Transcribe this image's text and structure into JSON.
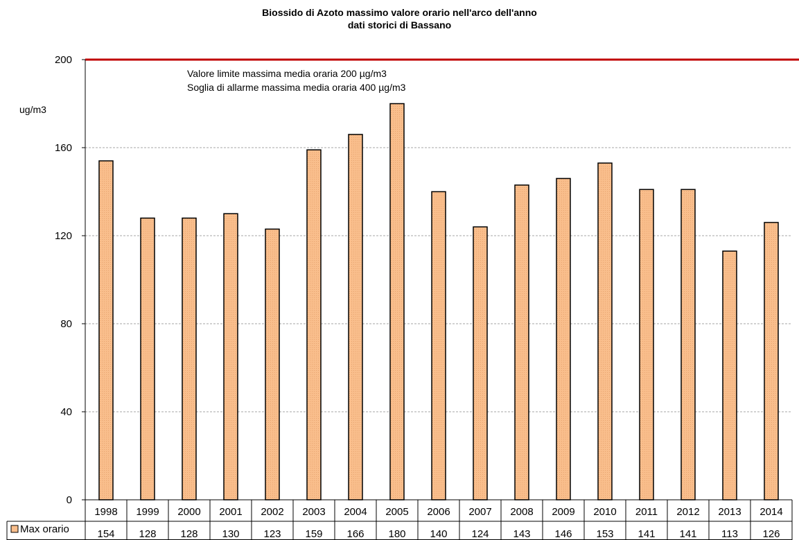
{
  "chart_data": {
    "type": "bar",
    "title": "Biossido di Azoto massimo valore orario nell'arco dell'anno",
    "subtitle": "dati storici di Bassano",
    "ylabel": "ug/m3",
    "ylim": [
      0,
      200
    ],
    "yticks": [
      0,
      40,
      80,
      120,
      160,
      200
    ],
    "categories": [
      "1998",
      "1999",
      "2000",
      "2001",
      "2002",
      "2003",
      "2004",
      "2005",
      "2006",
      "2007",
      "2008",
      "2009",
      "2010",
      "2011",
      "2012",
      "2013",
      "2014"
    ],
    "series": [
      {
        "name": "Max orario",
        "values": [
          154,
          128,
          128,
          130,
          123,
          159,
          166,
          180,
          140,
          124,
          143,
          146,
          153,
          141,
          141,
          113,
          126
        ]
      }
    ],
    "limit_line": {
      "value": 200
    },
    "annotations": [
      "Valore limite massima media oraria 200 µg/m3",
      "Soglia di allarme massima media oraria 400 µg/m3"
    ],
    "data_table": true,
    "grid": true,
    "colors": {
      "bar": "#f9be8c",
      "bar_stroke": "#000000",
      "limit_line": "#c00000",
      "grid": "#a6a6a6"
    }
  }
}
